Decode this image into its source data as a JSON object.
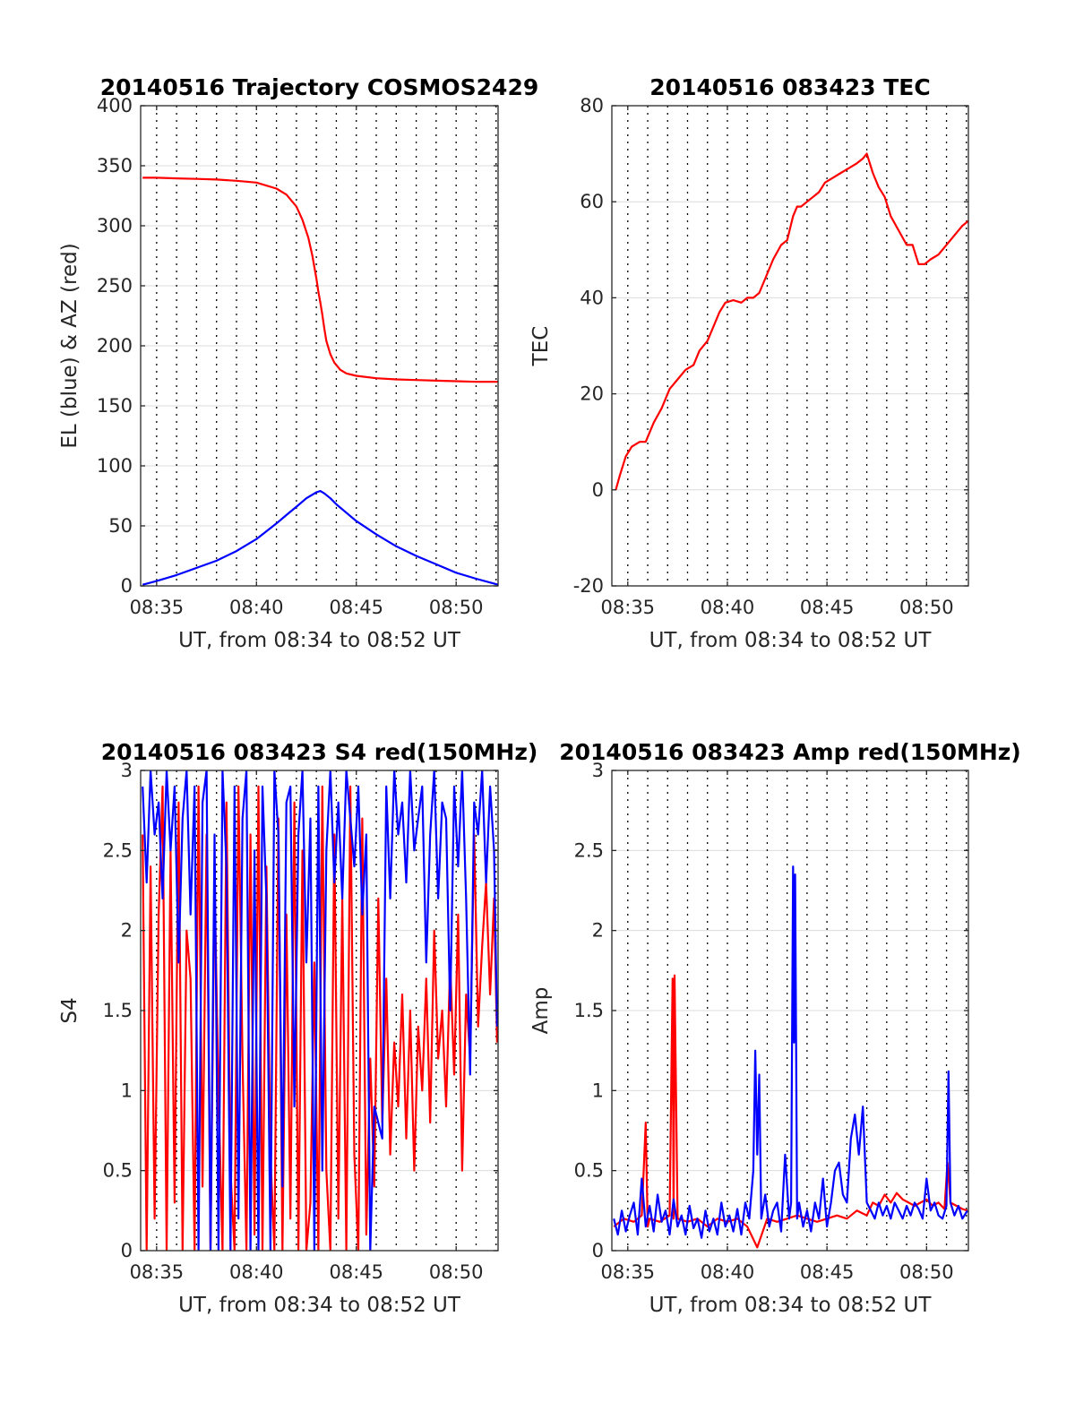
{
  "chart_data": [
    {
      "type": "line",
      "title": "20140516 Trajectory COSMOS2429",
      "xlabel": "UT, from 08:34 to 08:52 UT",
      "ylabel": "EL (blue) & AZ (red)",
      "xlim": [
        34.2,
        52.1
      ],
      "ylim": [
        0,
        400
      ],
      "xticks": [
        35,
        40,
        45,
        50
      ],
      "xtick_labels": [
        "08:35",
        "08:40",
        "08:45",
        "08:50"
      ],
      "yticks": [
        0,
        50,
        100,
        150,
        200,
        250,
        300,
        350,
        400
      ],
      "ytick_labels": [
        "0",
        "50",
        "100",
        "150",
        "200",
        "250",
        "300",
        "350",
        "400"
      ],
      "grid": true,
      "series": [
        {
          "color": "#ff0000",
          "x": [
            34.3,
            35,
            36,
            37,
            38,
            39,
            40,
            41,
            41.5,
            42,
            42.3,
            42.6,
            42.8,
            43,
            43.1,
            43.2,
            43.3,
            43.4,
            43.5,
            43.7,
            43.9,
            44.2,
            44.5,
            45,
            46,
            47,
            48,
            49,
            50,
            51,
            52.1
          ],
          "y": [
            340,
            340,
            339.5,
            339,
            338.5,
            337.5,
            336,
            331,
            326,
            316,
            305,
            290,
            275,
            256,
            245,
            236,
            226,
            214,
            204,
            193,
            186,
            180,
            177,
            175,
            173,
            172,
            171.5,
            171,
            170.5,
            170,
            170
          ]
        },
        {
          "color": "#0000ff",
          "x": [
            34.3,
            35,
            36,
            37,
            38,
            39,
            40,
            41,
            41.5,
            42,
            42.5,
            43,
            43.2,
            43.4,
            43.7,
            44,
            44.5,
            45,
            46,
            47,
            48,
            49,
            50,
            51,
            52.1
          ],
          "y": [
            1,
            4,
            9,
            15,
            21,
            29,
            39,
            52,
            59,
            66,
            73,
            78,
            79,
            77,
            73,
            68,
            61,
            54,
            43,
            33,
            25,
            18,
            11,
            6,
            1
          ]
        }
      ]
    },
    {
      "type": "line",
      "title": "20140516 083423 TEC",
      "xlabel": "UT, from 08:34 to 08:52 UT",
      "ylabel": "TEC",
      "xlim": [
        34.2,
        52.1
      ],
      "ylim": [
        -20,
        80
      ],
      "xticks": [
        35,
        40,
        45,
        50
      ],
      "xtick_labels": [
        "08:35",
        "08:40",
        "08:45",
        "08:50"
      ],
      "yticks": [
        -20,
        0,
        20,
        40,
        60,
        80
      ],
      "ytick_labels": [
        "-20",
        "0",
        "20",
        "40",
        "60",
        "80"
      ],
      "grid": true,
      "series": [
        {
          "color": "#ff0000",
          "x": [
            34.4,
            34.6,
            34.9,
            35.2,
            35.6,
            35.9,
            36.3,
            36.7,
            37.1,
            37.5,
            37.9,
            38.3,
            38.6,
            39,
            39.3,
            39.6,
            39.9,
            40.3,
            40.7,
            41,
            41.3,
            41.6,
            41.9,
            42.3,
            42.7,
            43,
            43.3,
            43.5,
            43.7,
            44,
            44.3,
            44.6,
            44.9,
            45.3,
            45.7,
            46.1,
            46.5,
            46.8,
            47,
            47.3,
            47.6,
            47.9,
            48.2,
            48.6,
            49,
            49.3,
            49.6,
            49.9,
            50.2,
            50.6,
            51,
            51.4,
            51.8,
            52.1
          ],
          "y": [
            0,
            3,
            7,
            9,
            10,
            10,
            14,
            17,
            21,
            23,
            25,
            26,
            29,
            31,
            34,
            37,
            39,
            39.5,
            39,
            40,
            40,
            41,
            44,
            48,
            51,
            52,
            57,
            59,
            59,
            60,
            61,
            62,
            64,
            65,
            66,
            67,
            68,
            69,
            70,
            66,
            63,
            61,
            57,
            54,
            51,
            51,
            47,
            47,
            48,
            49,
            51,
            53,
            55,
            56
          ]
        }
      ]
    },
    {
      "type": "line",
      "title": "20140516 083423 S4 red(150MHz)",
      "xlabel": "UT, from 08:34 to 08:52 UT",
      "ylabel": "S4",
      "xlim": [
        34.2,
        52.1
      ],
      "ylim": [
        0,
        3
      ],
      "xticks": [
        35,
        40,
        45,
        50
      ],
      "xtick_labels": [
        "08:35",
        "08:40",
        "08:45",
        "08:50"
      ],
      "yticks": [
        0,
        0.5,
        1,
        1.5,
        2,
        2.5,
        3
      ],
      "ytick_labels": [
        "0",
        "0.5",
        "1",
        "1.5",
        "2",
        "2.5",
        "3"
      ],
      "grid": true,
      "series": [
        {
          "color": "#ff0000",
          "x": [
            34.3,
            34.5,
            34.7,
            34.9,
            35.1,
            35.3,
            35.5,
            35.7,
            35.9,
            36.1,
            36.3,
            36.5,
            36.7,
            36.9,
            37.1,
            37.3,
            37.5,
            37.7,
            37.9,
            38.1,
            38.3,
            38.5,
            38.7,
            38.9,
            39.1,
            39.3,
            39.5,
            39.7,
            39.9,
            40.1,
            40.3,
            40.5,
            40.7,
            40.9,
            41.1,
            41.3,
            41.5,
            41.7,
            41.9,
            42.1,
            42.3,
            42.5,
            42.7,
            42.9,
            43.1,
            43.3,
            43.5,
            43.7,
            43.9,
            44.1,
            44.3,
            44.5,
            44.7,
            44.9,
            45.1,
            45.3,
            45.5,
            45.7,
            45.9,
            46.1,
            46.3,
            46.5,
            46.7,
            46.9,
            47.1,
            47.3,
            47.5,
            47.7,
            47.9,
            48.1,
            48.3,
            48.5,
            48.7,
            48.9,
            49.1,
            49.3,
            49.5,
            49.7,
            49.9,
            50.1,
            50.3,
            50.5,
            50.7,
            50.9,
            51.1,
            51.3,
            51.5,
            51.7,
            51.9,
            52.05
          ],
          "y": [
            2.6,
            0,
            2.4,
            0.2,
            2.1,
            2.9,
            0,
            2.5,
            0.3,
            2.8,
            0,
            2.0,
            1.7,
            0,
            2.9,
            0.4,
            2.6,
            0,
            2.3,
            1.0,
            0,
            2.8,
            0.5,
            0,
            2.9,
            1.2,
            0,
            2.6,
            0.1,
            2.9,
            0,
            2.4,
            0.6,
            0,
            2.7,
            0,
            2.1,
            0.2,
            2.8,
            0,
            2.5,
            0,
            0.3,
            1.8,
            0,
            2.9,
            0.5,
            0,
            2.6,
            0.2,
            2.2,
            0,
            2.9,
            0.6,
            0,
            2.7,
            0.1,
            1.2,
            0.4,
            2.2,
            0.8,
            1.7,
            0.6,
            1.3,
            0.9,
            1.6,
            0.7,
            1.5,
            0.5,
            1.4,
            1.0,
            1.7,
            0.8,
            2.0,
            1.2,
            1.5,
            0.9,
            1.8,
            1.1,
            2.1,
            0.5,
            1.6,
            1.2,
            2.6,
            1.4,
            1.9,
            2.3,
            1.6,
            2.2,
            1.3
          ]
        },
        {
          "color": "#0000ff",
          "x": [
            34.3,
            34.5,
            34.7,
            34.9,
            35.1,
            35.3,
            35.5,
            35.7,
            35.9,
            36.1,
            36.3,
            36.5,
            36.7,
            36.9,
            37.1,
            37.3,
            37.5,
            37.7,
            37.9,
            38.1,
            38.3,
            38.5,
            38.7,
            38.9,
            39.1,
            39.3,
            39.5,
            39.7,
            39.9,
            40.1,
            40.3,
            40.5,
            40.7,
            40.9,
            41.1,
            41.3,
            41.5,
            41.7,
            41.9,
            42.1,
            42.3,
            42.5,
            42.7,
            42.9,
            43.1,
            43.3,
            43.5,
            43.7,
            43.9,
            44.1,
            44.3,
            44.5,
            44.7,
            44.9,
            45.1,
            45.3,
            45.5,
            45.7,
            45.9,
            46.1,
            46.3,
            46.5,
            46.7,
            46.9,
            47.1,
            47.3,
            47.5,
            47.7,
            47.9,
            48.1,
            48.3,
            48.5,
            48.7,
            48.9,
            49.1,
            49.3,
            49.5,
            49.7,
            49.9,
            50.1,
            50.3,
            50.5,
            50.7,
            50.9,
            51.1,
            51.3,
            51.5,
            51.7,
            51.9,
            52.05
          ],
          "y": [
            2.9,
            2.3,
            3.0,
            2.6,
            2.8,
            2.2,
            3.0,
            2.5,
            2.9,
            1.8,
            2.7,
            3.0,
            2.1,
            2.9,
            0,
            2.8,
            3.0,
            0,
            2.6,
            0,
            3.0,
            2.4,
            0,
            2.9,
            0.2,
            2.7,
            3.0,
            0,
            2.5,
            0,
            2.9,
            2.2,
            0,
            3.0,
            2.6,
            0.4,
            2.8,
            2.9,
            0.9,
            2.6,
            3.0,
            1.8,
            2.7,
            0,
            2.9,
            0.5,
            2.5,
            3.0,
            2.3,
            2.8,
            2.2,
            3.0,
            2.7,
            2.4,
            2.9,
            2.1,
            2.6,
            0,
            0.9,
            0.8,
            0.7,
            2.9,
            2.2,
            3.0,
            2.6,
            2.8,
            2.3,
            3.0,
            2.5,
            2.7,
            2.9,
            1.8,
            2.6,
            3.0,
            2.2,
            2.8,
            2.7,
            1.5,
            2.9,
            2.4,
            3.0,
            2.2,
            1.1,
            2.8,
            2.6,
            3.0,
            2.3,
            2.9,
            2.5,
            1.4
          ]
        }
      ]
    },
    {
      "type": "line",
      "title": "20140516 083423 Amp red(150MHz)",
      "xlabel": "UT, from 08:34 to 08:52 UT",
      "ylabel": "Amp",
      "xlim": [
        34.2,
        52.1
      ],
      "ylim": [
        0,
        3
      ],
      "xticks": [
        35,
        40,
        45,
        50
      ],
      "xtick_labels": [
        "08:35",
        "08:40",
        "08:45",
        "08:50"
      ],
      "yticks": [
        0,
        0.5,
        1,
        1.5,
        2,
        2.5,
        3
      ],
      "ytick_labels": [
        "0",
        "0.5",
        "1",
        "1.5",
        "2",
        "2.5",
        "3"
      ],
      "grid": true,
      "series": [
        {
          "color": "#ff0000",
          "x": [
            34.3,
            34.8,
            35.3,
            35.7,
            35.9,
            36.0,
            36.1,
            36.6,
            37.1,
            37.25,
            37.3,
            37.35,
            37.5,
            38,
            38.5,
            39,
            39.5,
            40,
            40.5,
            41,
            41.5,
            42,
            42.5,
            43,
            43.5,
            44,
            44.5,
            45,
            45.5,
            46,
            46.5,
            47,
            47.3,
            47.6,
            47.9,
            48.2,
            48.5,
            48.8,
            49.1,
            49.4,
            49.7,
            50,
            50.3,
            50.6,
            50.9,
            51.05,
            51.2,
            51.5,
            51.8,
            52.05
          ],
          "y": [
            0.15,
            0.2,
            0.18,
            0.22,
            0.8,
            0.15,
            0.2,
            0.18,
            0.22,
            1.7,
            0.2,
            1.72,
            0.2,
            0.18,
            0.2,
            0.15,
            0.2,
            0.18,
            0.2,
            0.15,
            0.02,
            0.2,
            0.18,
            0.2,
            0.22,
            0.2,
            0.18,
            0.2,
            0.22,
            0.2,
            0.25,
            0.22,
            0.3,
            0.28,
            0.35,
            0.3,
            0.36,
            0.32,
            0.3,
            0.28,
            0.3,
            0.32,
            0.28,
            0.3,
            0.26,
            0.55,
            0.3,
            0.28,
            0.26,
            0.25
          ]
        },
        {
          "color": "#0000ff",
          "x": [
            34.3,
            34.5,
            34.7,
            34.9,
            35.1,
            35.3,
            35.5,
            35.7,
            35.9,
            36.1,
            36.3,
            36.5,
            36.7,
            36.9,
            37.1,
            37.3,
            37.5,
            37.7,
            37.9,
            38.1,
            38.3,
            38.5,
            38.7,
            38.9,
            39.1,
            39.3,
            39.5,
            39.7,
            39.9,
            40.1,
            40.3,
            40.5,
            40.7,
            40.9,
            41.1,
            41.3,
            41.4,
            41.5,
            41.6,
            41.7,
            41.9,
            42.1,
            42.3,
            42.5,
            42.7,
            42.9,
            43.1,
            43.2,
            43.3,
            43.35,
            43.4,
            43.5,
            43.6,
            43.8,
            44.0,
            44.2,
            44.4,
            44.6,
            44.8,
            45.0,
            45.2,
            45.4,
            45.6,
            45.8,
            46.0,
            46.2,
            46.4,
            46.6,
            46.8,
            47.0,
            47.2,
            47.4,
            47.6,
            47.8,
            48.0,
            48.2,
            48.4,
            48.6,
            48.8,
            49.0,
            49.2,
            49.4,
            49.6,
            49.8,
            50.0,
            50.2,
            50.4,
            50.6,
            50.8,
            51.0,
            51.1,
            51.2,
            51.4,
            51.6,
            51.8,
            52.05
          ],
          "y": [
            0.2,
            0.1,
            0.25,
            0.12,
            0.22,
            0.3,
            0.1,
            0.45,
            0.15,
            0.28,
            0.12,
            0.35,
            0.18,
            0.25,
            0.1,
            0.32,
            0.15,
            0.22,
            0.1,
            0.28,
            0.14,
            0.2,
            0.08,
            0.25,
            0.12,
            0.2,
            0.1,
            0.3,
            0.15,
            0.22,
            0.12,
            0.26,
            0.1,
            0.3,
            0.2,
            0.5,
            1.25,
            0.6,
            1.1,
            0.2,
            0.35,
            0.15,
            0.25,
            0.3,
            0.12,
            0.6,
            0.2,
            0.3,
            2.4,
            1.3,
            2.35,
            0.2,
            0.3,
            0.15,
            0.25,
            0.12,
            0.3,
            0.2,
            0.45,
            0.15,
            0.3,
            0.5,
            0.55,
            0.35,
            0.3,
            0.7,
            0.85,
            0.6,
            0.9,
            0.3,
            0.25,
            0.2,
            0.3,
            0.22,
            0.28,
            0.2,
            0.3,
            0.25,
            0.2,
            0.28,
            0.22,
            0.3,
            0.26,
            0.2,
            0.45,
            0.25,
            0.3,
            0.22,
            0.2,
            0.28,
            1.12,
            0.3,
            0.22,
            0.28,
            0.2,
            0.25
          ]
        }
      ]
    }
  ]
}
